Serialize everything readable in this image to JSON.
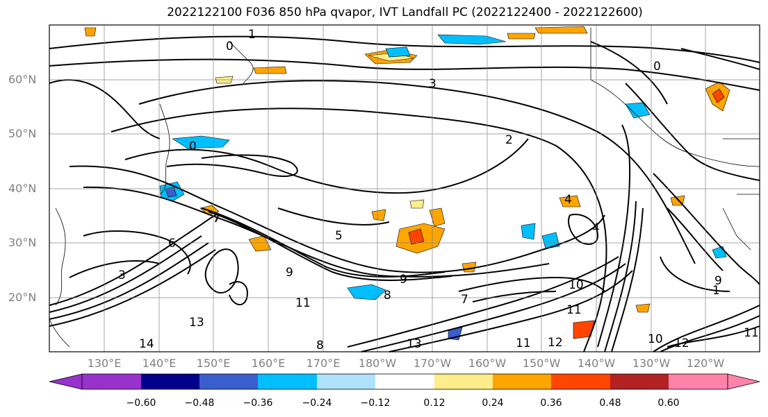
{
  "title": "2022122100 F036 850 hPa qvapor, IVT Landfall PC (2022122400 - 2022122600)",
  "lat_labels": [
    "60°N",
    "50°N",
    "40°N",
    "30°N",
    "20°N"
  ],
  "lon_labels": [
    "130°E",
    "140°E",
    "150°E",
    "160°E",
    "170°E",
    "180°W",
    "170°W",
    "160°W",
    "150°W",
    "140°W",
    "130°W",
    "120°W"
  ],
  "colorbar": {
    "colors": [
      "#9932cc",
      "#00008b",
      "#3a5fcd",
      "#00bfff",
      "#b0e2ff",
      "#ffffff",
      "#ffec8b",
      "#ffa500",
      "#ff4500",
      "#b22222",
      "#ff82ab"
    ],
    "tick_labels": [
      "−0.60",
      "−0.48",
      "−0.36",
      "−0.24",
      "−0.12",
      "0.12",
      "0.24",
      "0.36",
      "0.48",
      "0.60"
    ]
  },
  "contour_labels": [
    {
      "text": "1"
    },
    {
      "text": "0"
    },
    {
      "text": "3"
    },
    {
      "text": "0"
    },
    {
      "text": "2"
    },
    {
      "text": "0"
    },
    {
      "text": "4"
    },
    {
      "text": "4"
    },
    {
      "text": "5"
    },
    {
      "text": "9"
    },
    {
      "text": "9"
    },
    {
      "text": "8"
    },
    {
      "text": "11"
    },
    {
      "text": "14"
    },
    {
      "text": "12"
    },
    {
      "text": "11"
    },
    {
      "text": "10"
    },
    {
      "text": "11"
    },
    {
      "text": "13"
    },
    {
      "text": "10"
    },
    {
      "text": "1"
    },
    {
      "text": "9"
    },
    {
      "text": "3"
    },
    {
      "text": "6"
    },
    {
      "text": "13"
    },
    {
      "text": "7"
    },
    {
      "text": "8"
    },
    {
      "text": "12"
    },
    {
      "text": "11"
    }
  ]
}
